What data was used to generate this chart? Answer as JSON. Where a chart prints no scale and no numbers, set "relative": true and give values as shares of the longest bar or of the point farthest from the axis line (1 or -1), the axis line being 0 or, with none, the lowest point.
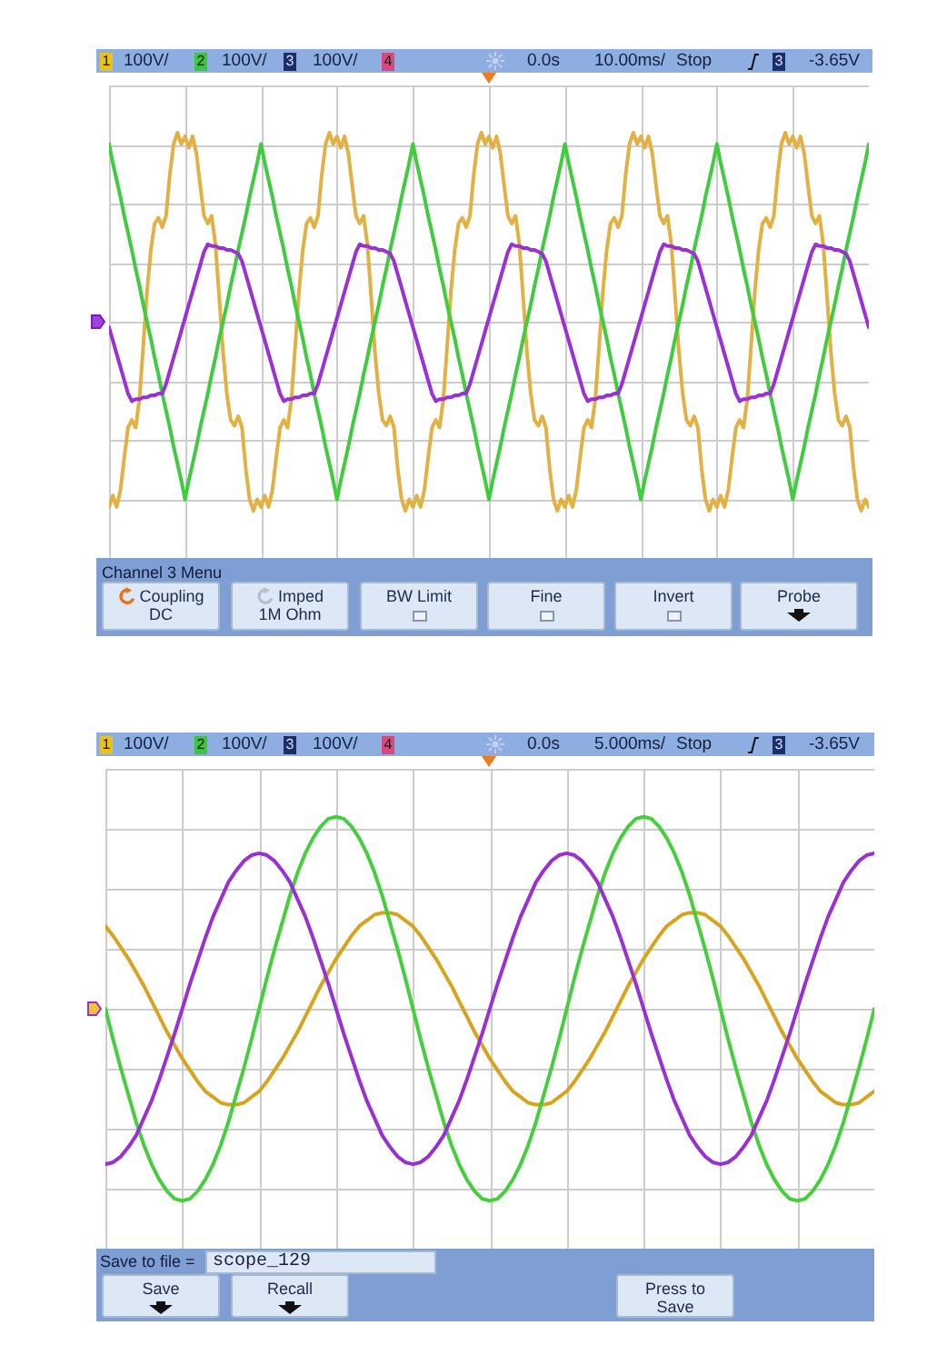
{
  "chart_data": [
    {
      "type": "line",
      "relative": true,
      "grid": true,
      "categories": [
        null,
        null,
        null,
        null,
        null,
        null,
        null,
        null,
        null,
        null,
        null,
        null,
        null,
        null,
        null,
        null,
        null,
        null,
        null,
        null,
        null,
        null,
        null,
        null,
        null,
        null,
        null,
        null,
        null,
        null,
        null,
        null,
        null,
        null,
        null,
        null,
        null,
        null,
        null,
        null,
        null,
        null,
        null,
        null,
        null,
        null,
        null,
        null,
        null,
        null,
        null,
        null,
        null,
        null,
        null,
        null,
        null,
        null,
        null,
        null,
        null,
        null,
        null,
        null,
        null,
        null,
        null,
        null,
        null,
        null,
        null,
        null,
        null,
        null,
        null,
        null,
        null,
        null,
        null,
        null,
        null,
        null,
        null,
        null,
        null,
        null,
        null,
        null,
        null,
        null,
        null,
        null,
        null,
        null,
        null,
        null,
        null,
        null,
        null,
        null,
        null,
        null,
        null,
        null,
        null,
        null,
        null,
        null,
        null,
        null,
        null,
        null,
        null,
        null,
        null,
        null,
        null,
        null,
        null,
        null,
        null,
        null,
        null,
        null,
        null,
        null,
        null,
        null,
        null,
        null,
        null,
        null,
        null,
        null,
        null,
        null,
        null,
        null,
        null,
        null,
        null,
        null,
        null,
        null,
        null,
        null,
        null,
        null,
        null,
        null,
        null,
        null,
        null,
        null,
        null,
        null,
        null,
        null,
        null,
        null,
        null,
        null,
        null,
        null,
        null,
        null,
        null,
        null,
        null,
        null,
        null,
        null,
        null,
        null,
        null,
        null,
        null,
        null,
        null,
        null,
        null,
        null,
        null,
        null,
        null,
        null,
        null,
        null,
        null,
        null,
        null,
        null,
        null,
        null,
        null,
        null,
        null,
        null,
        null,
        null,
        null
      ],
      "series": [
        {
          "color": "#e3b043",
          "values": [
            -0.98,
            -0.92,
            -0.98,
            -0.89,
            -0.72,
            -0.56,
            -0.52,
            -0.56,
            -0.41,
            -0.13,
            0.16,
            0.38,
            0.52,
            0.55,
            0.5,
            0.56,
            0.78,
            0.94,
            1,
            0.94,
            0.98,
            0.92,
            0.98,
            0.89,
            0.72,
            0.56,
            0.52,
            0.56,
            0.41,
            0.13,
            -0.16,
            -0.38,
            -0.52,
            -0.55,
            -0.5,
            -0.56,
            -0.78,
            -0.94,
            -1,
            -0.94,
            -0.98,
            -0.92,
            -0.98,
            -0.89,
            -0.72,
            -0.56,
            -0.52,
            -0.56,
            -0.41,
            -0.13,
            0.16,
            0.38,
            0.52,
            0.55,
            0.5,
            0.56,
            0.78,
            0.94,
            1,
            0.94,
            0.98,
            0.92,
            0.98,
            0.89,
            0.72,
            0.56,
            0.52,
            0.56,
            0.41,
            0.13,
            -0.16,
            -0.38,
            -0.52,
            -0.55,
            -0.5,
            -0.56,
            -0.78,
            -0.94,
            -1,
            -0.94,
            -0.98,
            -0.92,
            -0.98,
            -0.89,
            -0.72,
            -0.56,
            -0.52,
            -0.56,
            -0.41,
            -0.13,
            0.16,
            0.38,
            0.52,
            0.55,
            0.5,
            0.56,
            0.78,
            0.94,
            1,
            0.94,
            0.98,
            0.92,
            0.98,
            0.89,
            0.72,
            0.56,
            0.52,
            0.56,
            0.41,
            0.13,
            -0.16,
            -0.38,
            -0.52,
            -0.55,
            -0.5,
            -0.56,
            -0.78,
            -0.94,
            -1,
            -0.94,
            -0.98,
            -0.92,
            -0.98,
            -0.89,
            -0.72,
            -0.56,
            -0.52,
            -0.56,
            -0.41,
            -0.13,
            0.16,
            0.38,
            0.52,
            0.55,
            0.5,
            0.56,
            0.78,
            0.94,
            1,
            0.94,
            0.98,
            0.92,
            0.98,
            0.89,
            0.72,
            0.56,
            0.52,
            0.56,
            0.41,
            0.13,
            -0.16,
            -0.38,
            -0.52,
            -0.55,
            -0.5,
            -0.56,
            -0.78,
            -0.94,
            -1,
            -0.94,
            -0.98,
            -0.92,
            -0.98,
            -0.89,
            -0.72,
            -0.56,
            -0.52,
            -0.56,
            -0.41,
            -0.13,
            0.16,
            0.38,
            0.52,
            0.55,
            0.5,
            0.56,
            0.78,
            0.94,
            1,
            0.94,
            0.98,
            0.92,
            0.98,
            0.89,
            0.72,
            0.56,
            0.52,
            0.56,
            0.41,
            0.13,
            -0.16,
            -0.38,
            -0.52,
            -0.55,
            -0.5,
            -0.56,
            -0.78,
            -0.94,
            -1,
            -0.94,
            -0.98
          ]
        },
        {
          "color": "#3fcc3f",
          "values": [
            0.94,
            0.84,
            0.75,
            0.66,
            0.56,
            0.47,
            0.38,
            0.28,
            0.19,
            0.09,
            0,
            -0.09,
            -0.19,
            -0.28,
            -0.38,
            -0.47,
            -0.56,
            -0.66,
            -0.75,
            -0.84,
            -0.94,
            -0.84,
            -0.75,
            -0.66,
            -0.56,
            -0.47,
            -0.38,
            -0.28,
            -0.19,
            -0.09,
            0,
            0.09,
            0.19,
            0.28,
            0.38,
            0.47,
            0.56,
            0.66,
            0.75,
            0.84,
            0.94,
            0.84,
            0.75,
            0.66,
            0.56,
            0.47,
            0.38,
            0.28,
            0.19,
            0.09,
            0,
            -0.09,
            -0.19,
            -0.28,
            -0.38,
            -0.47,
            -0.56,
            -0.66,
            -0.75,
            -0.84,
            -0.94,
            -0.84,
            -0.75,
            -0.66,
            -0.56,
            -0.47,
            -0.38,
            -0.28,
            -0.19,
            -0.09,
            0,
            0.09,
            0.19,
            0.28,
            0.38,
            0.47,
            0.56,
            0.66,
            0.75,
            0.84,
            0.94,
            0.84,
            0.75,
            0.66,
            0.56,
            0.47,
            0.38,
            0.28,
            0.19,
            0.09,
            0,
            -0.09,
            -0.19,
            -0.28,
            -0.38,
            -0.47,
            -0.56,
            -0.66,
            -0.75,
            -0.84,
            -0.94,
            -0.84,
            -0.75,
            -0.66,
            -0.56,
            -0.47,
            -0.38,
            -0.28,
            -0.19,
            -0.09,
            0,
            0.09,
            0.19,
            0.28,
            0.38,
            0.47,
            0.56,
            0.66,
            0.75,
            0.84,
            0.94,
            0.84,
            0.75,
            0.66,
            0.56,
            0.47,
            0.38,
            0.28,
            0.19,
            0.09,
            0,
            -0.09,
            -0.19,
            -0.28,
            -0.38,
            -0.47,
            -0.56,
            -0.66,
            -0.75,
            -0.84,
            -0.94,
            -0.84,
            -0.75,
            -0.66,
            -0.56,
            -0.47,
            -0.38,
            -0.28,
            -0.19,
            -0.09,
            0,
            0.09,
            0.19,
            0.28,
            0.38,
            0.47,
            0.56,
            0.66,
            0.75,
            0.84,
            0.94,
            0.84,
            0.75,
            0.66,
            0.56,
            0.47,
            0.38,
            0.28,
            0.19,
            0.09,
            0,
            -0.09,
            -0.19,
            -0.28,
            -0.38,
            -0.47,
            -0.56,
            -0.66,
            -0.75,
            -0.84,
            -0.94,
            -0.84,
            -0.75,
            -0.66,
            -0.56,
            -0.47,
            -0.38,
            -0.28,
            -0.19,
            -0.09,
            0,
            0.09,
            0.19,
            0.28,
            0.38,
            0.47,
            0.56,
            0.66,
            0.75,
            0.84,
            0.94
          ]
        },
        {
          "color": "#9a30d6",
          "values": [
            -0.03,
            -0.1,
            -0.17,
            -0.24,
            -0.31,
            -0.38,
            -0.42,
            -0.41,
            -0.41,
            -0.4,
            -0.4,
            -0.39,
            -0.39,
            -0.38,
            -0.38,
            -0.33,
            -0.26,
            -0.19,
            -0.12,
            -0.05,
            0.02,
            0.09,
            0.16,
            0.23,
            0.3,
            0.37,
            0.41,
            0.4,
            0.4,
            0.39,
            0.39,
            0.38,
            0.38,
            0.37,
            0.36,
            0.32,
            0.25,
            0.18,
            0.11,
            0.04,
            -0.03,
            -0.1,
            -0.17,
            -0.24,
            -0.31,
            -0.38,
            -0.42,
            -0.41,
            -0.41,
            -0.4,
            -0.4,
            -0.39,
            -0.39,
            -0.38,
            -0.38,
            -0.33,
            -0.26,
            -0.19,
            -0.12,
            -0.05,
            0.02,
            0.09,
            0.16,
            0.23,
            0.3,
            0.37,
            0.41,
            0.4,
            0.4,
            0.39,
            0.39,
            0.38,
            0.38,
            0.37,
            0.36,
            0.32,
            0.25,
            0.18,
            0.11,
            0.04,
            -0.03,
            -0.1,
            -0.17,
            -0.24,
            -0.31,
            -0.38,
            -0.42,
            -0.41,
            -0.41,
            -0.4,
            -0.4,
            -0.39,
            -0.39,
            -0.38,
            -0.38,
            -0.33,
            -0.26,
            -0.19,
            -0.12,
            -0.05,
            0.02,
            0.09,
            0.16,
            0.23,
            0.3,
            0.37,
            0.41,
            0.4,
            0.4,
            0.39,
            0.39,
            0.38,
            0.38,
            0.37,
            0.36,
            0.32,
            0.25,
            0.18,
            0.11,
            0.04,
            -0.03,
            -0.1,
            -0.17,
            -0.24,
            -0.31,
            -0.38,
            -0.42,
            -0.41,
            -0.41,
            -0.4,
            -0.4,
            -0.39,
            -0.39,
            -0.38,
            -0.38,
            -0.33,
            -0.26,
            -0.19,
            -0.12,
            -0.05,
            0.02,
            0.09,
            0.16,
            0.23,
            0.3,
            0.37,
            0.41,
            0.4,
            0.4,
            0.39,
            0.39,
            0.38,
            0.38,
            0.37,
            0.36,
            0.32,
            0.25,
            0.18,
            0.11,
            0.04,
            -0.03,
            -0.1,
            -0.17,
            -0.24,
            -0.31,
            -0.38,
            -0.42,
            -0.41,
            -0.41,
            -0.4,
            -0.4,
            -0.39,
            -0.39,
            -0.38,
            -0.38,
            -0.33,
            -0.26,
            -0.19,
            -0.12,
            -0.05,
            0.02,
            0.09,
            0.16,
            0.23,
            0.3,
            0.37,
            0.41,
            0.4,
            0.4,
            0.39,
            0.39,
            0.38,
            0.38,
            0.37,
            0.36,
            0.32,
            0.25,
            0.18,
            0.11,
            0.04,
            -0.03
          ]
        }
      ],
      "annotations": [
        "1",
        "100V/",
        "2",
        "100V/",
        "3",
        "100V/",
        "4",
        "0.0s",
        "10.00ms/",
        "Stop",
        "3",
        "-3.65V",
        "Channel 3  Menu",
        "Coupling",
        "DC",
        "Imped",
        "1M Ohm",
        "BW Limit",
        "Fine",
        "Invert",
        "Probe"
      ]
    },
    {
      "type": "line",
      "relative": true,
      "grid": true,
      "categories": [
        null,
        null,
        null,
        null,
        null,
        null,
        null,
        null,
        null,
        null,
        null,
        null,
        null,
        null,
        null,
        null,
        null,
        null,
        null,
        null,
        null,
        null,
        null,
        null,
        null,
        null,
        null,
        null,
        null,
        null,
        null,
        null,
        null,
        null,
        null,
        null,
        null,
        null,
        null,
        null,
        null,
        null,
        null,
        null,
        null,
        null,
        null,
        null,
        null,
        null,
        null,
        null,
        null,
        null,
        null,
        null,
        null,
        null,
        null,
        null,
        null,
        null,
        null,
        null,
        null,
        null,
        null,
        null,
        null,
        null,
        null,
        null,
        null,
        null,
        null,
        null,
        null,
        null,
        null,
        null,
        null,
        null,
        null,
        null,
        null,
        null,
        null,
        null,
        null,
        null,
        null,
        null,
        null,
        null,
        null,
        null,
        null,
        null,
        null,
        null,
        null
      ],
      "series": [
        {
          "color": "#d9a31e",
          "values": [
            0.43,
            0.38,
            0.32,
            0.26,
            0.19,
            0.12,
            0.04,
            -0.04,
            -0.12,
            -0.19,
            -0.26,
            -0.32,
            -0.38,
            -0.43,
            -0.46,
            -0.49,
            -0.5,
            -0.5,
            -0.49,
            -0.46,
            -0.43,
            -0.38,
            -0.32,
            -0.26,
            -0.19,
            -0.12,
            -0.04,
            0.04,
            0.12,
            0.19,
            0.26,
            0.32,
            0.38,
            0.43,
            0.46,
            0.49,
            0.5,
            0.5,
            0.49,
            0.46,
            0.43,
            0.38,
            0.32,
            0.26,
            0.19,
            0.12,
            0.04,
            -0.04,
            -0.12,
            -0.19,
            -0.26,
            -0.32,
            -0.38,
            -0.43,
            -0.46,
            -0.49,
            -0.5,
            -0.5,
            -0.49,
            -0.46,
            -0.43,
            -0.38,
            -0.32,
            -0.26,
            -0.19,
            -0.12,
            -0.04,
            0.04,
            0.12,
            0.19,
            0.26,
            0.32,
            0.38,
            0.43,
            0.46,
            0.49,
            0.5,
            0.5,
            0.49,
            0.46,
            0.43,
            0.38,
            0.32,
            0.26,
            0.19,
            0.12,
            0.04,
            -0.04,
            -0.12,
            -0.19,
            -0.26,
            -0.32,
            -0.38,
            -0.43,
            -0.46,
            -0.49,
            -0.5,
            -0.5,
            -0.49,
            -0.46,
            -0.43
          ]
        },
        {
          "color": "#45cf3c",
          "values": [
            0,
            -0.16,
            -0.31,
            -0.45,
            -0.59,
            -0.71,
            -0.81,
            -0.89,
            -0.95,
            -0.99,
            -1,
            -0.99,
            -0.95,
            -0.89,
            -0.81,
            -0.71,
            -0.59,
            -0.45,
            -0.31,
            -0.16,
            0,
            0.16,
            0.31,
            0.45,
            0.59,
            0.71,
            0.81,
            0.89,
            0.95,
            0.99,
            1,
            0.99,
            0.95,
            0.89,
            0.81,
            0.71,
            0.59,
            0.45,
            0.31,
            0.16,
            0,
            -0.16,
            -0.31,
            -0.45,
            -0.59,
            -0.71,
            -0.81,
            -0.89,
            -0.95,
            -0.99,
            -1,
            -0.99,
            -0.95,
            -0.89,
            -0.81,
            -0.71,
            -0.59,
            -0.45,
            -0.31,
            -0.16,
            0,
            0.16,
            0.31,
            0.45,
            0.59,
            0.71,
            0.81,
            0.89,
            0.95,
            0.99,
            1,
            0.99,
            0.95,
            0.89,
            0.81,
            0.71,
            0.59,
            0.45,
            0.31,
            0.16,
            0,
            -0.16,
            -0.31,
            -0.45,
            -0.59,
            -0.71,
            -0.81,
            -0.89,
            -0.95,
            -0.99,
            -1,
            -0.99,
            -0.95,
            -0.89,
            -0.81,
            -0.71,
            -0.59,
            -0.45,
            -0.31,
            -0.16,
            0
          ]
        },
        {
          "color": "#9a2fd4",
          "values": [
            -0.81,
            -0.8,
            -0.77,
            -0.72,
            -0.66,
            -0.57,
            -0.48,
            -0.37,
            -0.25,
            -0.13,
            0,
            0.13,
            0.25,
            0.37,
            0.48,
            0.57,
            0.66,
            0.72,
            0.77,
            0.8,
            0.81,
            0.8,
            0.77,
            0.72,
            0.66,
            0.57,
            0.48,
            0.37,
            0.25,
            0.13,
            0,
            -0.13,
            -0.25,
            -0.37,
            -0.48,
            -0.57,
            -0.66,
            -0.72,
            -0.77,
            -0.8,
            -0.81,
            -0.8,
            -0.77,
            -0.72,
            -0.66,
            -0.57,
            -0.48,
            -0.37,
            -0.25,
            -0.13,
            0,
            0.13,
            0.25,
            0.37,
            0.48,
            0.57,
            0.66,
            0.72,
            0.77,
            0.8,
            0.81,
            0.8,
            0.77,
            0.72,
            0.66,
            0.57,
            0.48,
            0.37,
            0.25,
            0.13,
            0,
            -0.13,
            -0.25,
            -0.37,
            -0.48,
            -0.57,
            -0.66,
            -0.72,
            -0.77,
            -0.8,
            -0.81,
            -0.8,
            -0.77,
            -0.72,
            -0.66,
            -0.57,
            -0.48,
            -0.37,
            -0.25,
            -0.13,
            0,
            0.13,
            0.25,
            0.37,
            0.48,
            0.57,
            0.66,
            0.72,
            0.77,
            0.8,
            0.81
          ]
        }
      ],
      "annotations": [
        "1",
        "100V/",
        "2",
        "100V/",
        "3",
        "100V/",
        "4",
        "0.0s",
        "5.000ms/",
        "Stop",
        "3",
        "-3.65V",
        "Save to file =",
        "scope_129",
        "Save",
        "Recall",
        "Press to Save"
      ]
    }
  ]
}
